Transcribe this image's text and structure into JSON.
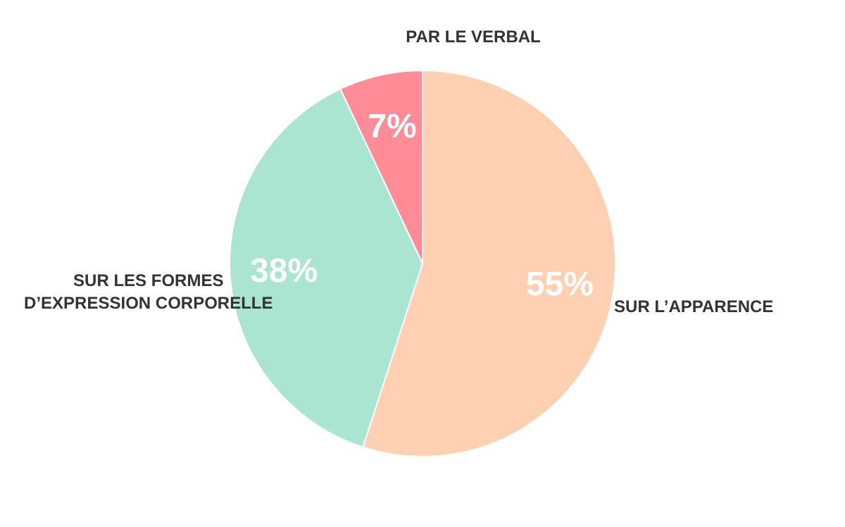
{
  "chart_data": {
    "type": "pie",
    "categories": [
      "SUR L’APPARENCE",
      "SUR LES FORMES D’EXPRESSION CORPORELLE",
      "PAR LE VERBAL"
    ],
    "values": [
      55,
      38,
      7
    ],
    "colors": [
      "#ffd0b2",
      "#a9e5d0",
      "#ff8c96"
    ],
    "value_labels": [
      "55%",
      "38%",
      "7%"
    ]
  }
}
